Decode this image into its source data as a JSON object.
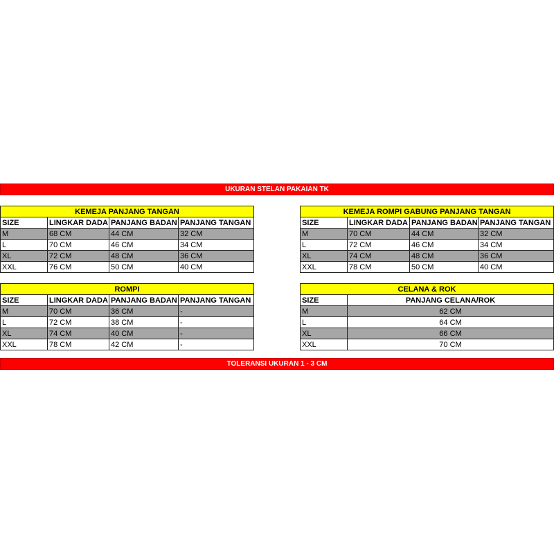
{
  "header_bar": "UKURAN STELAN PAKAIAN TK",
  "footer_bar": "TOLERANSI UKURAN 1 - 3 CM",
  "colors": {
    "bar": "#ff0000",
    "title": "#ffff00",
    "stripe": "#a6a6a6"
  },
  "tables": [
    {
      "title": "KEMEJA PANJANG TANGAN",
      "headers": [
        "SIZE",
        "LINGKAR DADA",
        "PANJANG BADAN",
        "PANJANG TANGAN"
      ],
      "rows": [
        [
          "M",
          "68 CM",
          "44 CM",
          "32 CM"
        ],
        [
          "L",
          "70 CM",
          "46 CM",
          "34 CM"
        ],
        [
          "XL",
          "72 CM",
          "48 CM",
          "36 CM"
        ],
        [
          "XXL",
          "76 CM",
          "50 CM",
          "40 CM"
        ]
      ]
    },
    {
      "title": "KEMEJA ROMPI GABUNG PANJANG TANGAN",
      "headers": [
        "SIZE",
        "LINGKAR DADA",
        "PANJANG BADAN",
        "PANJANG TANGAN"
      ],
      "rows": [
        [
          "M",
          "70 CM",
          "44 CM",
          "32 CM"
        ],
        [
          "L",
          "72 CM",
          "46 CM",
          "34 CM"
        ],
        [
          "XL",
          "74 CM",
          "48 CM",
          "36 CM"
        ],
        [
          "XXL",
          "78 CM",
          "50 CM",
          "40 CM"
        ]
      ]
    },
    {
      "title": "ROMPI",
      "headers": [
        "SIZE",
        "LINGKAR DADA",
        "PANJANG BADAN",
        "PANJANG TANGAN"
      ],
      "rows": [
        [
          "M",
          "70 CM",
          "36 CM",
          "-"
        ],
        [
          "L",
          "72 CM",
          "38 CM",
          "-"
        ],
        [
          "XL",
          "74 CM",
          "40 CM",
          "-"
        ],
        [
          "XXL",
          "78 CM",
          "42 CM",
          "-"
        ]
      ]
    },
    {
      "title": "CELANA & ROK",
      "headers": [
        "SIZE",
        "PANJANG CELANA/ROK"
      ],
      "rows": [
        [
          "M",
          "62 CM"
        ],
        [
          "L",
          "64 CM"
        ],
        [
          "XL",
          "66 CM"
        ],
        [
          "XXL",
          "70 CM"
        ]
      ]
    }
  ]
}
